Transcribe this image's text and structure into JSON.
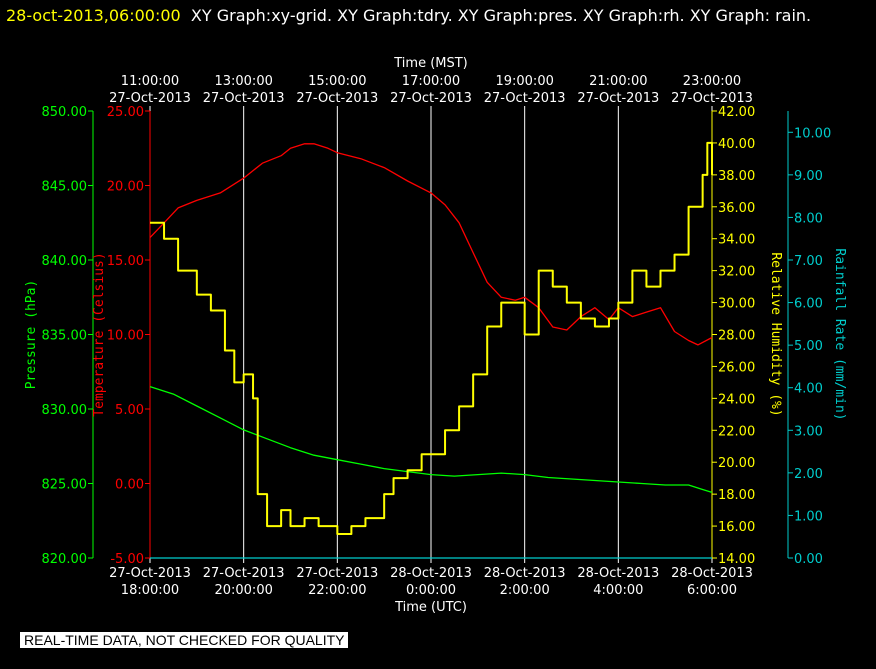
{
  "header": {
    "timestamp": "28-oct-2013,06:00:00",
    "graphs": "XY Graph:xy-grid.  XY Graph:tdry.  XY Graph:pres.  XY Graph:rh.  XY Graph: rain."
  },
  "footer": {
    "notice": "REAL-TIME DATA, NOT CHECKED FOR QUALITY"
  },
  "colors": {
    "background": "#000000",
    "grid": "#ffffff",
    "temperature": "#ff0000",
    "pressure": "#00ff00",
    "humidity": "#ffff00",
    "rain": "#00cccc",
    "axis_text": "#ffffff"
  },
  "chart_data": {
    "type": "line",
    "grid": true,
    "x_top": {
      "label": "Time (MST)",
      "ticks": [
        [
          "11:00:00",
          "27-Oct-2013"
        ],
        [
          "13:00:00",
          "27-Oct-2013"
        ],
        [
          "15:00:00",
          "27-Oct-2013"
        ],
        [
          "17:00:00",
          "27-Oct-2013"
        ],
        [
          "19:00:00",
          "27-Oct-2013"
        ],
        [
          "21:00:00",
          "27-Oct-2013"
        ],
        [
          "23:00:00",
          "27-Oct-2013"
        ]
      ]
    },
    "x_bottom": {
      "label": "Time (UTC)",
      "range": [
        18,
        30
      ],
      "tick_hours": [
        18,
        20,
        22,
        24,
        26,
        28,
        30
      ],
      "ticks": [
        [
          "27-Oct-2013",
          "18:00:00"
        ],
        [
          "27-Oct-2013",
          "20:00:00"
        ],
        [
          "27-Oct-2013",
          "22:00:00"
        ],
        [
          "28-Oct-2013",
          "0:00:00"
        ],
        [
          "28-Oct-2013",
          "2:00:00"
        ],
        [
          "28-Oct-2013",
          "4:00:00"
        ],
        [
          "28-Oct-2013",
          "6:00:00"
        ]
      ]
    },
    "y_axes": {
      "pressure": {
        "label": "Pressure (hPa)",
        "range": [
          820,
          850
        ],
        "ticks": [
          "820.00",
          "825.00",
          "830.00",
          "835.00",
          "840.00",
          "845.00",
          "850.00"
        ]
      },
      "temperature": {
        "label": "Temperature (Celsius)",
        "range": [
          -5,
          25
        ],
        "ticks": [
          "-5.00",
          "0.00",
          "5.00",
          "10.00",
          "15.00",
          "20.00",
          "25.00"
        ]
      },
      "humidity": {
        "label": "Relative Humidity (%)",
        "range": [
          14,
          42
        ],
        "ticks": [
          "14.00",
          "16.00",
          "18.00",
          "20.00",
          "22.00",
          "24.00",
          "26.00",
          "28.00",
          "30.00",
          "32.00",
          "34.00",
          "36.00",
          "38.00",
          "40.00",
          "42.00"
        ]
      },
      "rain": {
        "label": "Rainfall Rate (mm/min)",
        "range": [
          0,
          10.5
        ],
        "ticks": [
          "0.00",
          "1.00",
          "2.00",
          "3.00",
          "4.00",
          "5.00",
          "6.00",
          "7.00",
          "8.00",
          "9.00",
          "10.00"
        ]
      }
    },
    "series": [
      {
        "key": "temperature",
        "x": [
          18,
          18.3,
          18.6,
          19,
          19.5,
          20,
          20.4,
          20.8,
          21,
          21.3,
          21.5,
          21.8,
          22,
          22.5,
          23,
          23.5,
          24,
          24.3,
          24.6,
          24.9,
          25.2,
          25.5,
          25.8,
          26,
          26.3,
          26.6,
          26.9,
          27.2,
          27.5,
          27.8,
          28,
          28.3,
          28.6,
          28.9,
          29.2,
          29.5,
          29.7,
          30
        ],
        "y": [
          16.5,
          17.5,
          18.5,
          19,
          19.5,
          20.5,
          21.5,
          22,
          22.5,
          22.8,
          22.8,
          22.5,
          22.2,
          21.8,
          21.2,
          20.3,
          19.5,
          18.7,
          17.5,
          15.5,
          13.5,
          12.5,
          12.3,
          12.5,
          11.8,
          10.5,
          10.3,
          11.2,
          11.8,
          11,
          11.8,
          11.2,
          11.5,
          11.8,
          10.2,
          9.6,
          9.3,
          9.8
        ]
      },
      {
        "key": "pressure",
        "x": [
          18,
          18.5,
          19,
          19.5,
          20,
          20.5,
          21,
          21.5,
          22,
          22.5,
          23,
          23.5,
          24,
          24.5,
          25,
          25.5,
          26,
          26.5,
          27,
          27.5,
          28,
          28.5,
          29,
          29.5,
          29.8,
          30
        ],
        "y": [
          831.5,
          831,
          830.2,
          829.4,
          828.6,
          828,
          827.4,
          826.9,
          826.6,
          826.3,
          826.0,
          825.8,
          825.6,
          825.5,
          825.6,
          825.7,
          825.6,
          825.4,
          825.3,
          825.2,
          825.1,
          825.0,
          824.9,
          824.9,
          824.6,
          824.4
        ]
      },
      {
        "key": "humidity",
        "x": [
          18,
          18.3,
          18.6,
          19,
          19.3,
          19.6,
          19.8,
          20,
          20.2,
          20.3,
          20.5,
          20.8,
          21,
          21.3,
          21.6,
          22,
          22.3,
          22.6,
          23,
          23.2,
          23.5,
          23.8,
          24,
          24.3,
          24.6,
          24.9,
          25.2,
          25.5,
          25.8,
          26,
          26.3,
          26.6,
          26.9,
          27.2,
          27.5,
          27.8,
          28,
          28.3,
          28.6,
          28.9,
          29.2,
          29.5,
          29.8,
          29.9,
          30
        ],
        "y": [
          35,
          34,
          32,
          30.5,
          29.5,
          27,
          25,
          25.5,
          24,
          18,
          16,
          17,
          16,
          16.5,
          16,
          15.5,
          16,
          16.5,
          18,
          19,
          19.5,
          20.5,
          20.5,
          22,
          23.5,
          25.5,
          28.5,
          30,
          30,
          28,
          32,
          31,
          30,
          29,
          28.5,
          29,
          30,
          32,
          31,
          32,
          33,
          36,
          38,
          40,
          38
        ]
      },
      {
        "key": "rain",
        "x": [
          18,
          30
        ],
        "y": [
          0,
          0
        ]
      }
    ]
  }
}
